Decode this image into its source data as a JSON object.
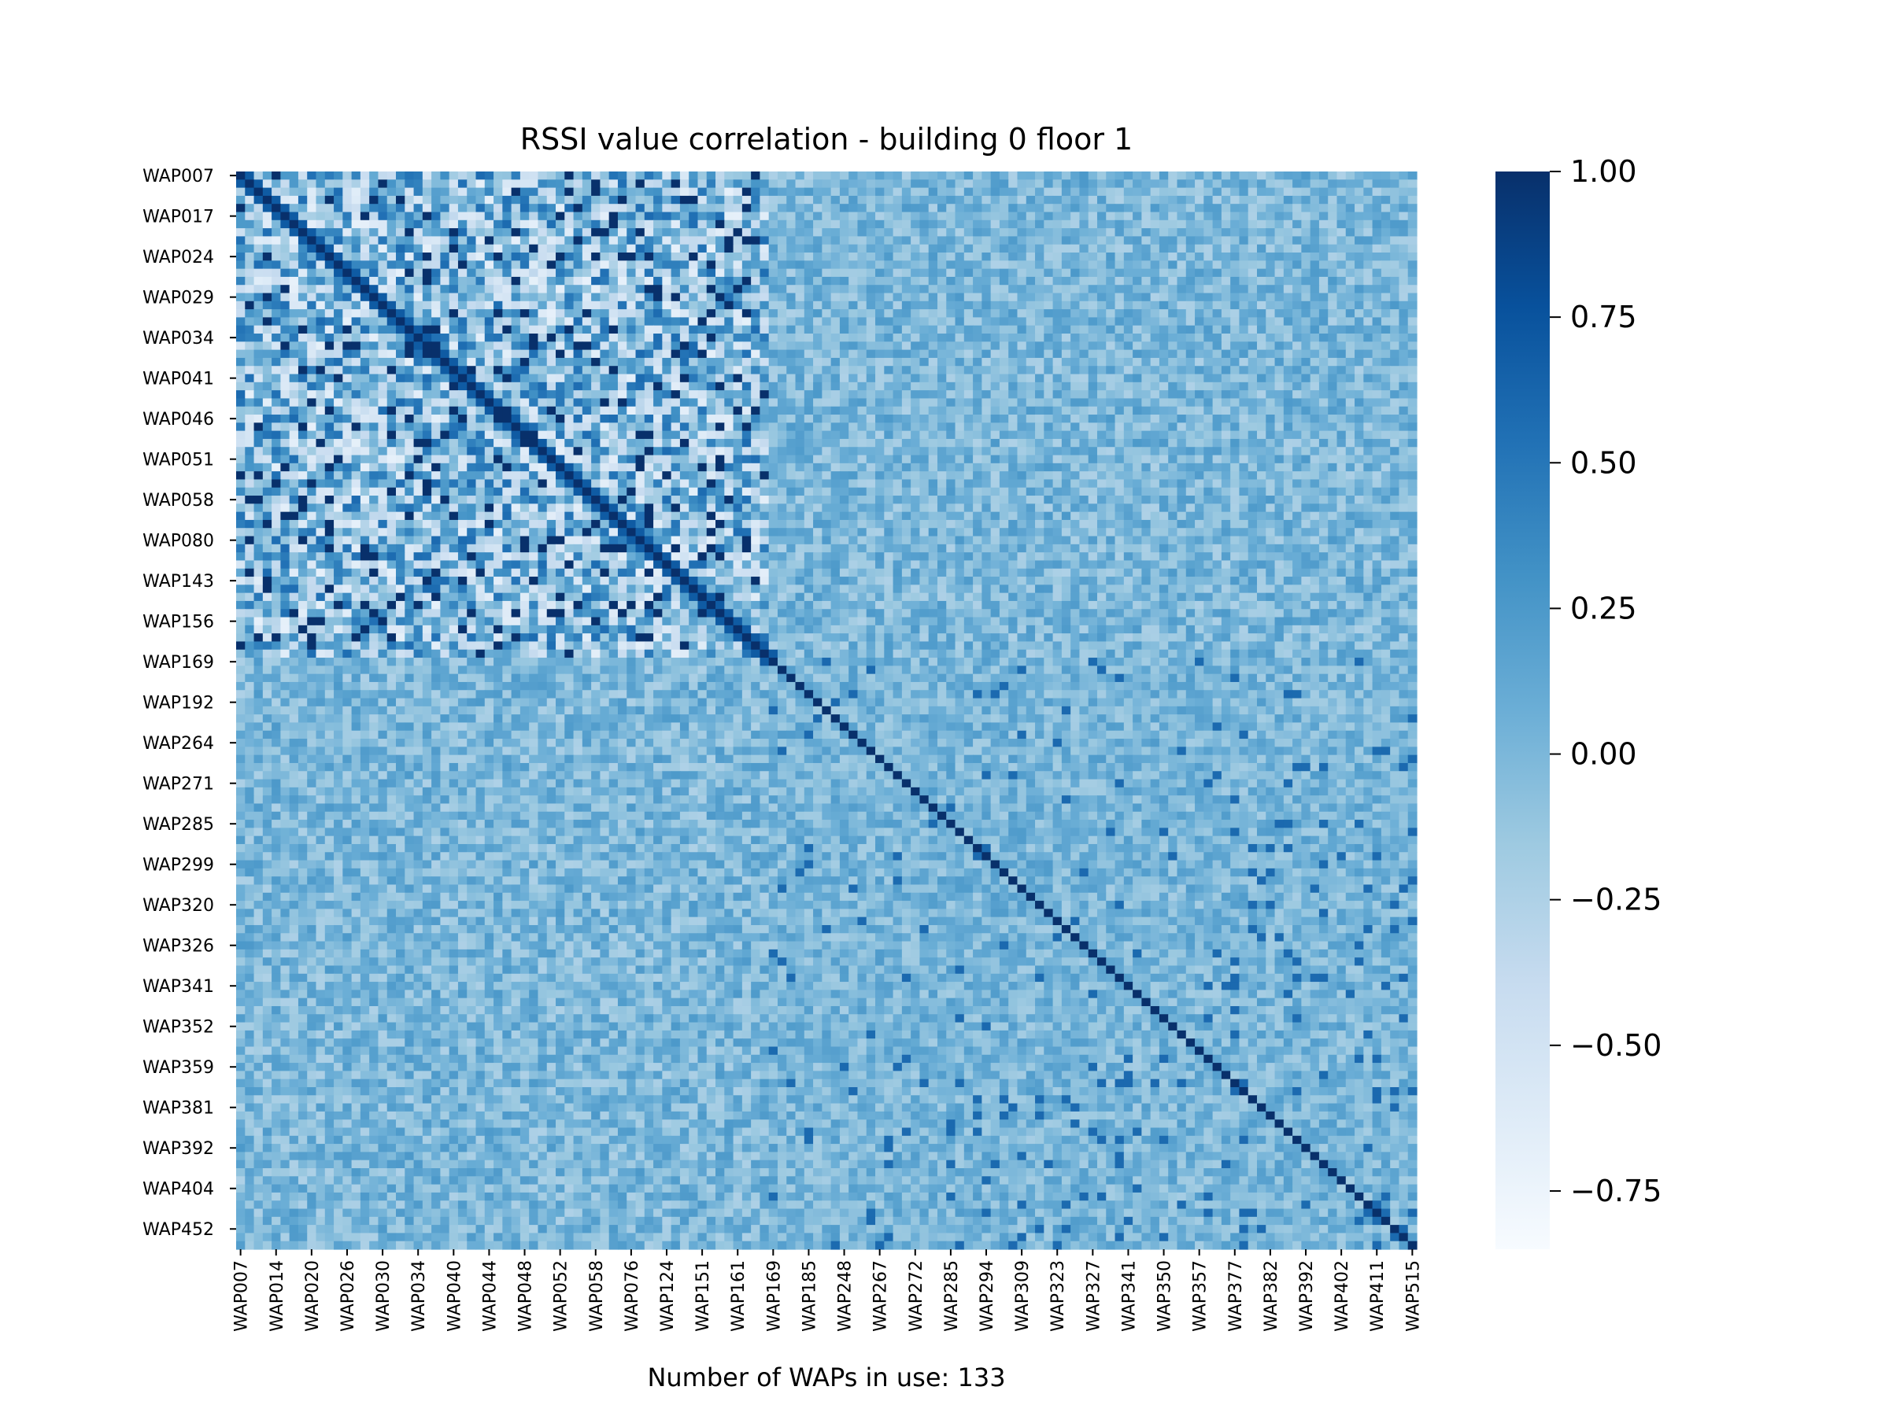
{
  "chart_data": {
    "type": "heatmap",
    "title": "RSSI value correlation - building 0 floor 1",
    "xlabel": "Number of WAPs in use: 133",
    "ylabel": "",
    "n_waps": 133,
    "colormap": "Blues",
    "vmin": -0.85,
    "vmax": 1.0,
    "colors": {
      "low": "#f7fbff",
      "high": "#08306b",
      "diagonal": "#08306b",
      "background_near_zero": "#7fb4d9"
    },
    "y_tick_labels": [
      "WAP007",
      "WAP017",
      "WAP024",
      "WAP029",
      "WAP034",
      "WAP041",
      "WAP046",
      "WAP051",
      "WAP058",
      "WAP080",
      "WAP143",
      "WAP156",
      "WAP169",
      "WAP192",
      "WAP264",
      "WAP271",
      "WAP285",
      "WAP299",
      "WAP320",
      "WAP326",
      "WAP341",
      "WAP352",
      "WAP359",
      "WAP381",
      "WAP392",
      "WAP404",
      "WAP452"
    ],
    "x_tick_labels": [
      "WAP007",
      "WAP014",
      "WAP020",
      "WAP026",
      "WAP030",
      "WAP034",
      "WAP040",
      "WAP044",
      "WAP048",
      "WAP052",
      "WAP058",
      "WAP076",
      "WAP124",
      "WAP151",
      "WAP161",
      "WAP169",
      "WAP185",
      "WAP248",
      "WAP267",
      "WAP272",
      "WAP285",
      "WAP294",
      "WAP309",
      "WAP323",
      "WAP327",
      "WAP341",
      "WAP350",
      "WAP357",
      "WAP377",
      "WAP382",
      "WAP392",
      "WAP402",
      "WAP411",
      "WAP515"
    ],
    "colorbar_ticks": [
      "1.00",
      "0.75",
      "0.50",
      "0.25",
      "0.00",
      "−0.25",
      "−0.50",
      "−0.75"
    ],
    "colorbar_tick_values": [
      1.0,
      0.75,
      0.5,
      0.25,
      0.0,
      -0.25,
      -0.5,
      -0.75
    ],
    "matrix_note_strong_block": "rows/cols 0-59 show strong mixed correlations; remaining mostly near 0 with diagonal = 1"
  }
}
